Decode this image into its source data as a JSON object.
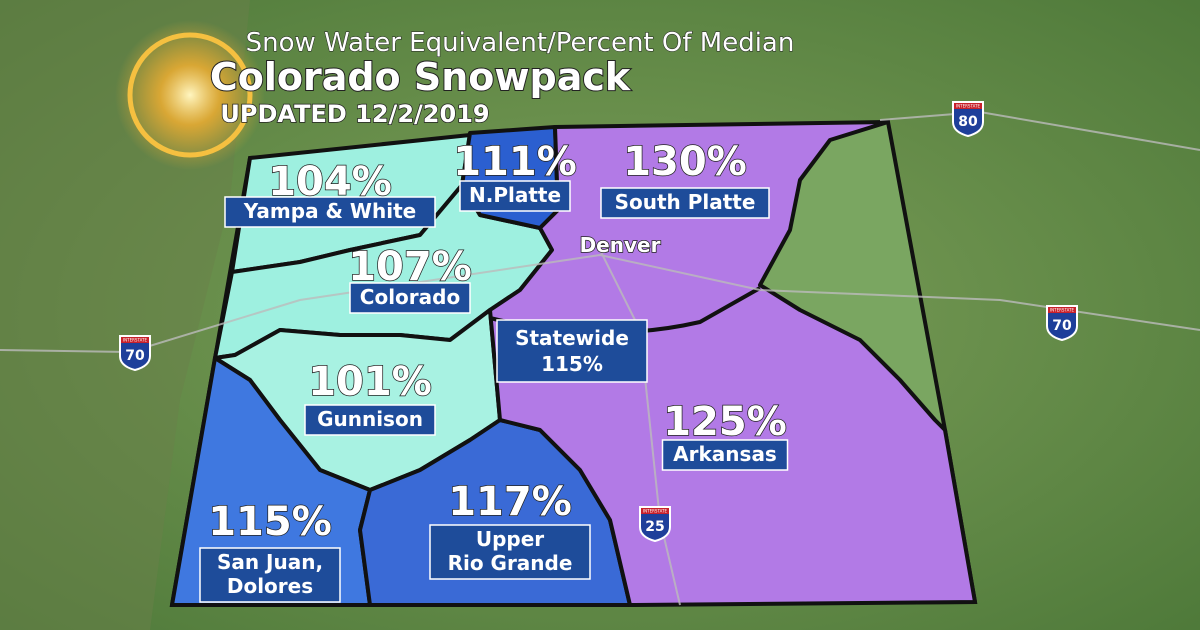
{
  "header": {
    "subtitle": "Snow Water Equivalent/Percent Of Median",
    "title": "Colorado Snowpack",
    "updated": "UPDATED 12/2/2019"
  },
  "regions": [
    {
      "percent": "104%",
      "name": [
        "Yampa & White"
      ]
    },
    {
      "percent": "111%",
      "name": [
        "N.Platte"
      ]
    },
    {
      "percent": "130%",
      "name": [
        "South Platte"
      ]
    },
    {
      "percent": "107%",
      "name": [
        "Colorado"
      ]
    },
    {
      "percent": "101%",
      "name": [
        "Gunnison"
      ]
    },
    {
      "percent": "125%",
      "name": [
        "Arkansas"
      ]
    },
    {
      "percent": "115%",
      "name": [
        "San Juan,",
        "Dolores"
      ]
    },
    {
      "percent": "117%",
      "name": [
        "Upper",
        "Rio Grande"
      ]
    }
  ],
  "statewide": {
    "label": "Statewide",
    "percent": "115%"
  },
  "city": "Denver",
  "highways": {
    "shield_label": "INTERSTATE",
    "numbers": [
      "80",
      "70",
      "70",
      "25"
    ]
  }
}
